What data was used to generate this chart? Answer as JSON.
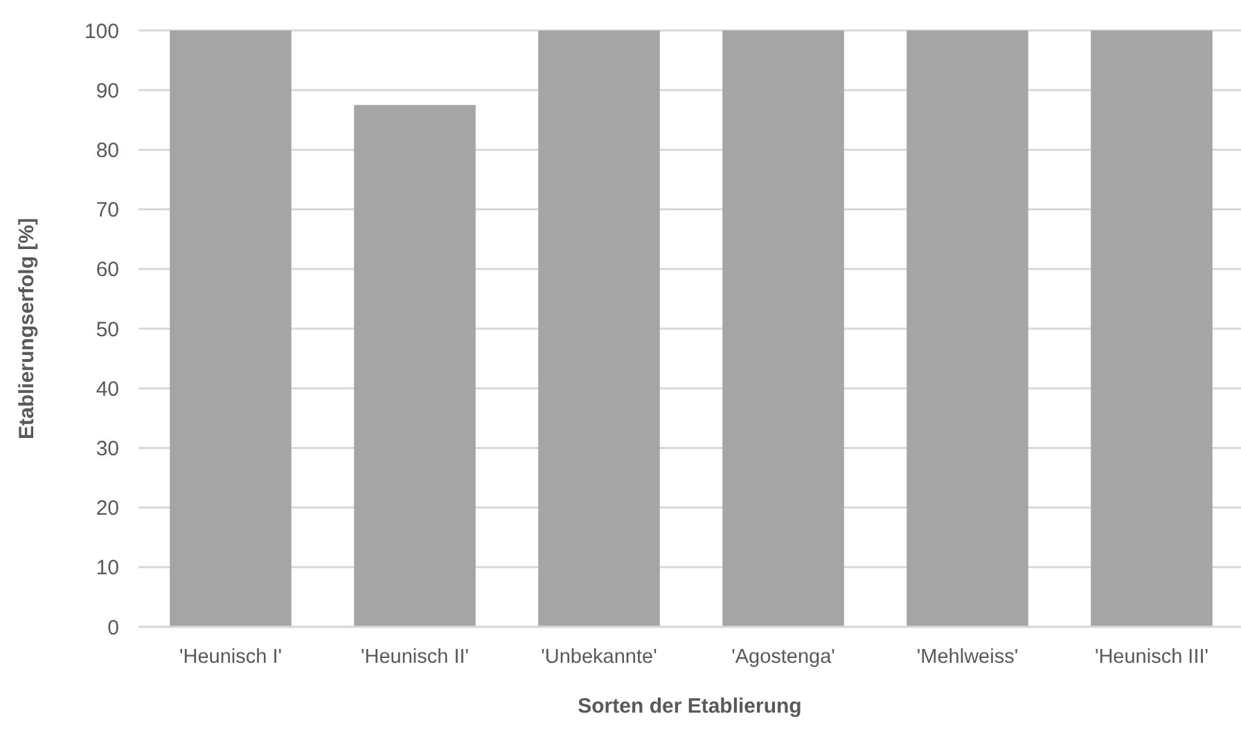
{
  "chart_data": {
    "type": "bar",
    "xlabel": "Sorten der Etablierung",
    "ylabel": "Etablierungserfolg [%]",
    "categories": [
      "'Heunisch I'",
      "'Heunisch II'",
      "'Unbekannte'",
      "'Agostenga'",
      "'Mehlweiss'",
      "'Heunisch III'"
    ],
    "values": [
      100,
      87.5,
      100,
      100,
      100,
      100
    ],
    "color": "#a5a5a5",
    "ylim": [
      0,
      100
    ],
    "yticks": [
      0,
      10,
      20,
      30,
      40,
      50,
      60,
      70,
      80,
      90,
      100
    ],
    "grid": "y"
  }
}
